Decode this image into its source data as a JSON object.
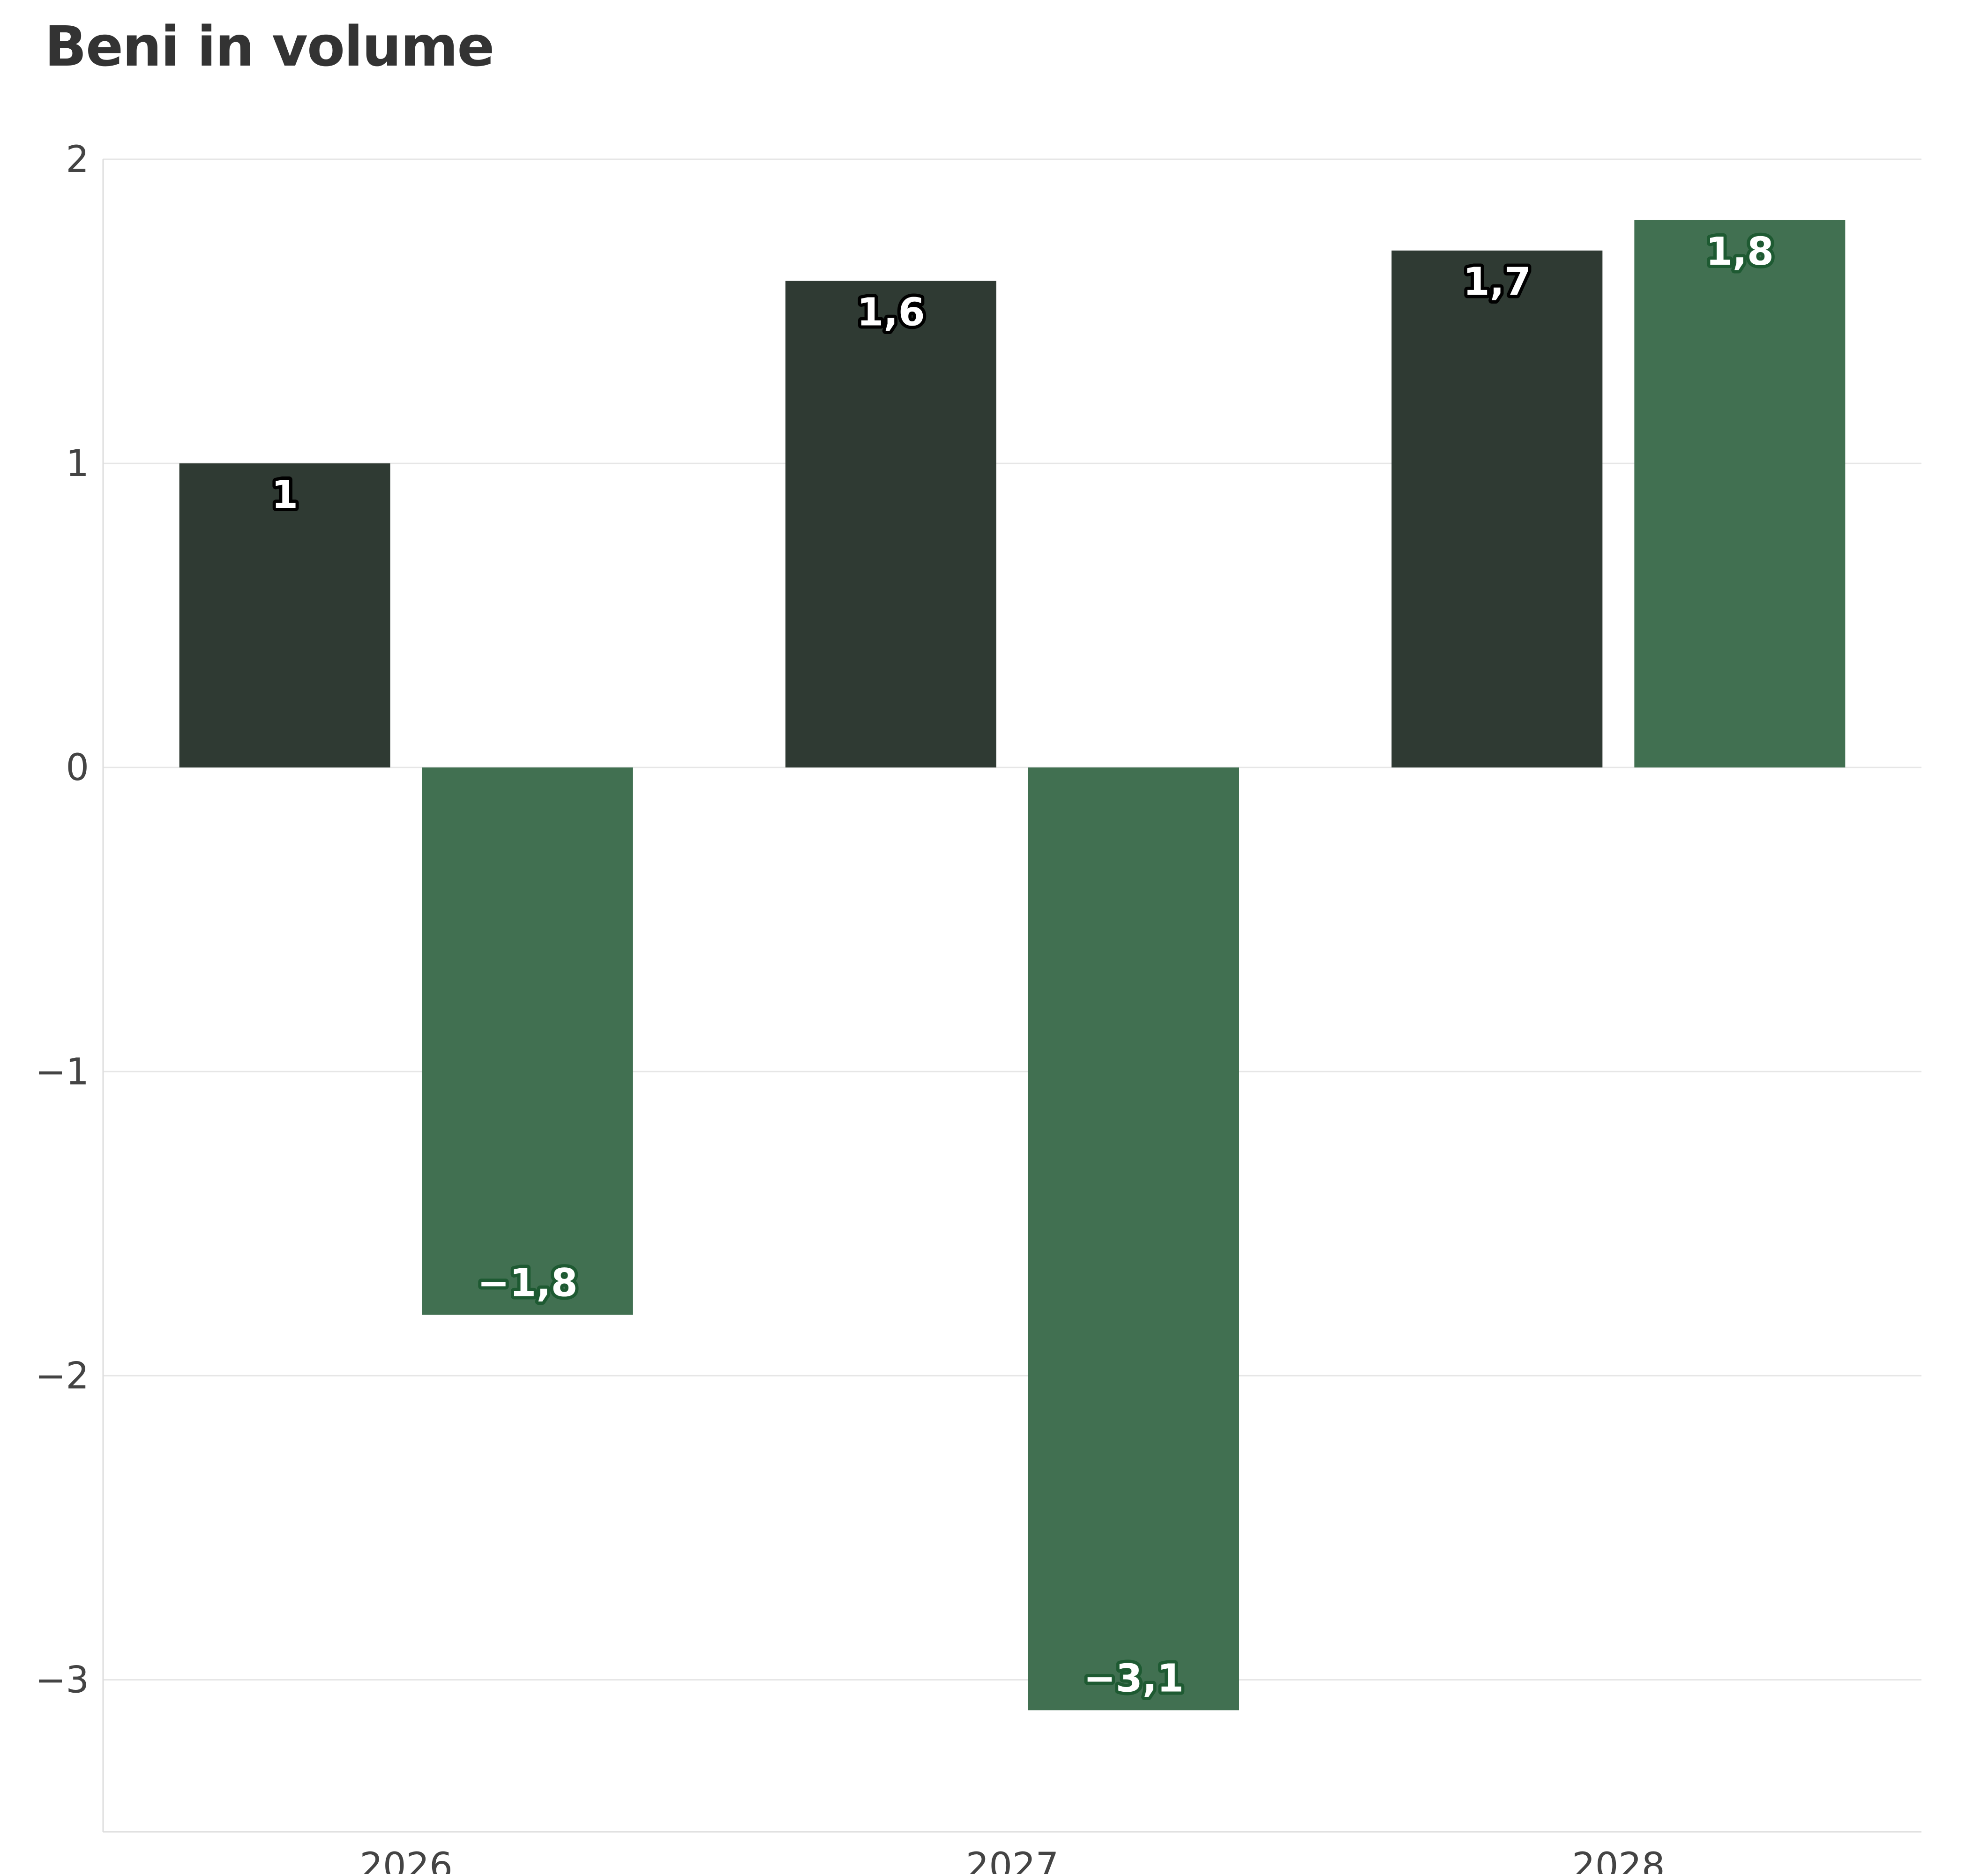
{
  "chart_data": {
    "type": "bar",
    "title": "Beni in volume",
    "xlabel": "",
    "ylabel": "",
    "categories": [
      "2026",
      "2027",
      "2028"
    ],
    "series": [
      {
        "values": [
          1,
          1.6,
          1.7
        ],
        "labels": [
          "1",
          "1,6",
          "1,7"
        ],
        "color": "#2f3a33",
        "label_outline": "#000000"
      },
      {
        "values": [
          -1.8,
          -3.1,
          1.8
        ],
        "labels": [
          "−1,8",
          "−3,1",
          "1,8"
        ],
        "color": "#417051",
        "label_outline": "#1e5a32"
      }
    ],
    "ylim": [
      -3.5,
      2
    ],
    "yticks": [
      2,
      1,
      0,
      -1,
      -2,
      -3
    ],
    "ytick_labels": [
      "2",
      "1",
      "0",
      "−1",
      "−2",
      "−3"
    ],
    "grid": true,
    "legend": "none"
  }
}
